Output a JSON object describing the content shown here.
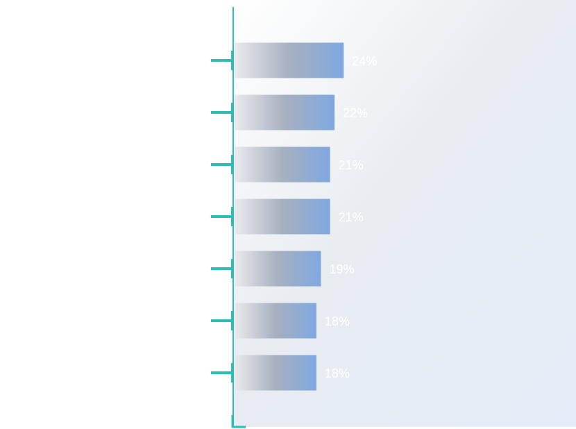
{
  "chart_data": {
    "type": "bar",
    "orientation": "horizontal",
    "title": "",
    "xlabel": "",
    "ylabel": "",
    "categories": [
      "",
      "",
      "",
      "",
      "",
      "",
      ""
    ],
    "values": [
      24,
      22,
      21,
      21,
      19,
      18,
      18
    ],
    "value_labels": [
      "24%",
      "22%",
      "21%",
      "21%",
      "19%",
      "18%",
      "18%"
    ],
    "xlim": [
      0,
      100
    ],
    "grid": false,
    "legend": "none"
  },
  "colors": {
    "axis": "#2dbdb6",
    "bar_start": "#e9eaec",
    "bar_mid": "#a7b0c0",
    "bar_end": "#7fa8e0",
    "value_label": "#ffffff",
    "panel_start": "#ffffff",
    "panel_mid": "#e8ecf1",
    "panel_end": "#e3ecf8"
  }
}
